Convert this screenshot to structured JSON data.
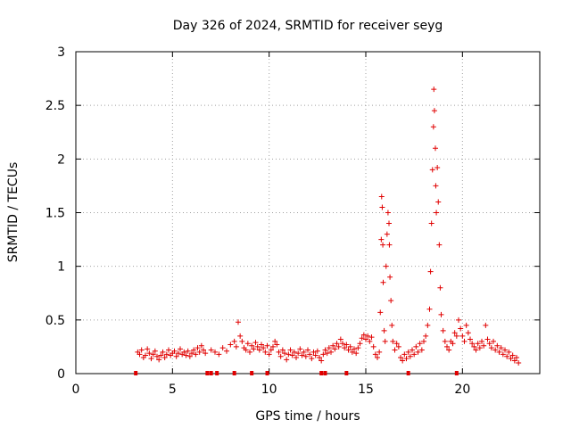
{
  "chart_data": {
    "type": "scatter",
    "title": "Day 326 of 2024, SRMTID for receiver seyg",
    "xlabel": "GPS time / hours",
    "ylabel": "SRMTID / TECUs",
    "xlim": [
      0,
      24
    ],
    "ylim": [
      0,
      3
    ],
    "x_ticks": [
      0,
      5,
      10,
      15,
      20
    ],
    "y_ticks": [
      0,
      0.5,
      1,
      1.5,
      2,
      2.5,
      3
    ],
    "x_tick_labels": [
      "0",
      "5",
      "10",
      "15",
      "20"
    ],
    "y_tick_labels": [
      "0",
      "0.5",
      "1",
      "1.5",
      "2",
      "2.5",
      "3"
    ],
    "grid": true,
    "marker": "plus",
    "color": "#e00000",
    "gap_marker_color": "#e00000",
    "series": [
      {
        "name": "SRMTID",
        "points": [
          [
            3.2,
            0.2
          ],
          [
            3.3,
            0.18
          ],
          [
            3.4,
            0.22
          ],
          [
            3.5,
            0.15
          ],
          [
            3.6,
            0.17
          ],
          [
            3.7,
            0.23
          ],
          [
            3.8,
            0.19
          ],
          [
            3.9,
            0.14
          ],
          [
            4.0,
            0.18
          ],
          [
            4.1,
            0.21
          ],
          [
            4.2,
            0.16
          ],
          [
            4.3,
            0.13
          ],
          [
            4.4,
            0.17
          ],
          [
            4.5,
            0.2
          ],
          [
            4.6,
            0.15
          ],
          [
            4.7,
            0.18
          ],
          [
            4.8,
            0.22
          ],
          [
            4.9,
            0.17
          ],
          [
            5.0,
            0.19
          ],
          [
            5.1,
            0.21
          ],
          [
            5.2,
            0.16
          ],
          [
            5.3,
            0.19
          ],
          [
            5.4,
            0.23
          ],
          [
            5.5,
            0.18
          ],
          [
            5.6,
            0.2
          ],
          [
            5.7,
            0.17
          ],
          [
            5.8,
            0.21
          ],
          [
            5.9,
            0.16
          ],
          [
            6.0,
            0.19
          ],
          [
            6.1,
            0.22
          ],
          [
            6.2,
            0.18
          ],
          [
            6.3,
            0.24
          ],
          [
            6.4,
            0.2
          ],
          [
            6.5,
            0.26
          ],
          [
            6.6,
            0.22
          ],
          [
            6.7,
            0.19
          ],
          [
            7.0,
            0.22
          ],
          [
            7.2,
            0.2
          ],
          [
            7.4,
            0.18
          ],
          [
            7.6,
            0.24
          ],
          [
            7.8,
            0.21
          ],
          [
            8.0,
            0.27
          ],
          [
            8.2,
            0.3
          ],
          [
            8.3,
            0.25
          ],
          [
            8.4,
            0.48
          ],
          [
            8.5,
            0.35
          ],
          [
            8.6,
            0.3
          ],
          [
            8.7,
            0.24
          ],
          [
            8.8,
            0.22
          ],
          [
            8.9,
            0.28
          ],
          [
            9.0,
            0.2
          ],
          [
            9.1,
            0.26
          ],
          [
            9.2,
            0.23
          ],
          [
            9.3,
            0.29
          ],
          [
            9.4,
            0.25
          ],
          [
            9.5,
            0.22
          ],
          [
            9.6,
            0.27
          ],
          [
            9.7,
            0.24
          ],
          [
            9.8,
            0.2
          ],
          [
            9.9,
            0.26
          ],
          [
            10.0,
            0.18
          ],
          [
            10.1,
            0.22
          ],
          [
            10.2,
            0.25
          ],
          [
            10.3,
            0.3
          ],
          [
            10.4,
            0.27
          ],
          [
            10.5,
            0.2
          ],
          [
            10.6,
            0.16
          ],
          [
            10.7,
            0.22
          ],
          [
            10.8,
            0.19
          ],
          [
            10.9,
            0.13
          ],
          [
            11.0,
            0.18
          ],
          [
            11.1,
            0.22
          ],
          [
            11.2,
            0.17
          ],
          [
            11.3,
            0.2
          ],
          [
            11.4,
            0.15
          ],
          [
            11.5,
            0.19
          ],
          [
            11.6,
            0.23
          ],
          [
            11.7,
            0.17
          ],
          [
            11.8,
            0.2
          ],
          [
            11.9,
            0.16
          ],
          [
            12.0,
            0.22
          ],
          [
            12.1,
            0.18
          ],
          [
            12.2,
            0.14
          ],
          [
            12.3,
            0.2
          ],
          [
            12.4,
            0.17
          ],
          [
            12.5,
            0.21
          ],
          [
            12.6,
            0.15
          ],
          [
            12.7,
            0.12
          ],
          [
            12.8,
            0.18
          ],
          [
            12.9,
            0.22
          ],
          [
            13.0,
            0.19
          ],
          [
            13.1,
            0.24
          ],
          [
            13.2,
            0.2
          ],
          [
            13.3,
            0.26
          ],
          [
            13.4,
            0.23
          ],
          [
            13.5,
            0.28
          ],
          [
            13.6,
            0.25
          ],
          [
            13.7,
            0.32
          ],
          [
            13.8,
            0.28
          ],
          [
            13.9,
            0.24
          ],
          [
            14.0,
            0.27
          ],
          [
            14.1,
            0.22
          ],
          [
            14.2,
            0.25
          ],
          [
            14.3,
            0.2
          ],
          [
            14.4,
            0.23
          ],
          [
            14.5,
            0.19
          ],
          [
            14.6,
            0.24
          ],
          [
            14.7,
            0.28
          ],
          [
            14.8,
            0.33
          ],
          [
            14.9,
            0.36
          ],
          [
            15.0,
            0.32
          ],
          [
            15.1,
            0.35
          ],
          [
            15.2,
            0.3
          ],
          [
            15.3,
            0.34
          ],
          [
            15.4,
            0.25
          ],
          [
            15.5,
            0.18
          ],
          [
            15.6,
            0.15
          ],
          [
            15.7,
            0.2
          ],
          [
            15.75,
            0.57
          ],
          [
            15.8,
            1.25
          ],
          [
            15.82,
            1.65
          ],
          [
            15.85,
            1.55
          ],
          [
            15.88,
            1.2
          ],
          [
            15.9,
            0.85
          ],
          [
            15.95,
            0.4
          ],
          [
            16.0,
            0.3
          ],
          [
            16.05,
            1.0
          ],
          [
            16.1,
            1.3
          ],
          [
            16.15,
            1.5
          ],
          [
            16.2,
            1.4
          ],
          [
            16.22,
            1.2
          ],
          [
            16.25,
            0.9
          ],
          [
            16.3,
            0.68
          ],
          [
            16.35,
            0.45
          ],
          [
            16.4,
            0.3
          ],
          [
            16.5,
            0.22
          ],
          [
            16.6,
            0.28
          ],
          [
            16.7,
            0.25
          ],
          [
            16.8,
            0.15
          ],
          [
            16.9,
            0.12
          ],
          [
            17.0,
            0.18
          ],
          [
            17.1,
            0.14
          ],
          [
            17.2,
            0.2
          ],
          [
            17.3,
            0.16
          ],
          [
            17.4,
            0.22
          ],
          [
            17.5,
            0.18
          ],
          [
            17.6,
            0.25
          ],
          [
            17.7,
            0.2
          ],
          [
            17.8,
            0.28
          ],
          [
            17.9,
            0.22
          ],
          [
            18.0,
            0.3
          ],
          [
            18.1,
            0.35
          ],
          [
            18.2,
            0.45
          ],
          [
            18.3,
            0.6
          ],
          [
            18.35,
            0.95
          ],
          [
            18.4,
            1.4
          ],
          [
            18.45,
            1.9
          ],
          [
            18.5,
            2.3
          ],
          [
            18.52,
            2.65
          ],
          [
            18.55,
            2.45
          ],
          [
            18.6,
            2.1
          ],
          [
            18.62,
            1.75
          ],
          [
            18.65,
            1.5
          ],
          [
            18.7,
            1.92
          ],
          [
            18.75,
            1.6
          ],
          [
            18.8,
            1.2
          ],
          [
            18.85,
            0.8
          ],
          [
            18.9,
            0.55
          ],
          [
            19.0,
            0.4
          ],
          [
            19.1,
            0.3
          ],
          [
            19.2,
            0.25
          ],
          [
            19.3,
            0.22
          ],
          [
            19.4,
            0.3
          ],
          [
            19.5,
            0.28
          ],
          [
            19.6,
            0.38
          ],
          [
            19.7,
            0.35
          ],
          [
            19.8,
            0.5
          ],
          [
            19.9,
            0.42
          ],
          [
            20.0,
            0.35
          ],
          [
            20.1,
            0.3
          ],
          [
            20.2,
            0.45
          ],
          [
            20.3,
            0.38
          ],
          [
            20.4,
            0.32
          ],
          [
            20.5,
            0.28
          ],
          [
            20.6,
            0.25
          ],
          [
            20.7,
            0.22
          ],
          [
            20.8,
            0.28
          ],
          [
            20.9,
            0.24
          ],
          [
            21.0,
            0.3
          ],
          [
            21.1,
            0.26
          ],
          [
            21.2,
            0.45
          ],
          [
            21.3,
            0.32
          ],
          [
            21.4,
            0.28
          ],
          [
            21.5,
            0.24
          ],
          [
            21.6,
            0.3
          ],
          [
            21.7,
            0.22
          ],
          [
            21.8,
            0.26
          ],
          [
            21.9,
            0.2
          ],
          [
            22.0,
            0.24
          ],
          [
            22.1,
            0.18
          ],
          [
            22.2,
            0.22
          ],
          [
            22.3,
            0.16
          ],
          [
            22.4,
            0.2
          ],
          [
            22.5,
            0.14
          ],
          [
            22.6,
            0.17
          ],
          [
            22.7,
            0.12
          ],
          [
            22.8,
            0.15
          ],
          [
            22.9,
            0.1
          ]
        ]
      }
    ],
    "baseline_markers_x": [
      3.1,
      6.8,
      7.0,
      7.3,
      8.2,
      9.1,
      9.9,
      12.7,
      12.9,
      14.0,
      17.2,
      19.7
    ]
  }
}
